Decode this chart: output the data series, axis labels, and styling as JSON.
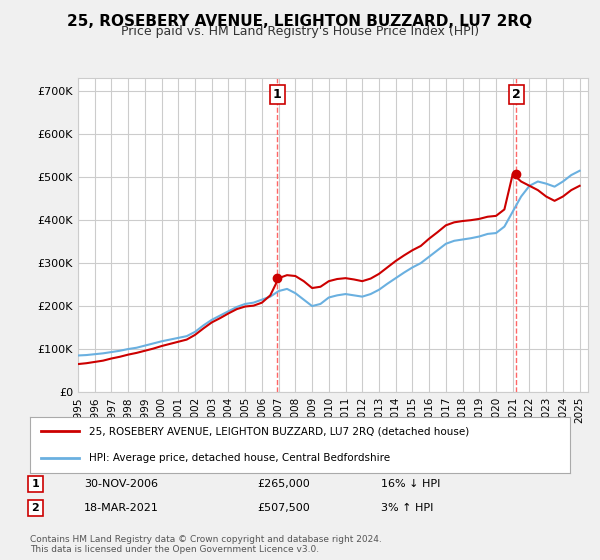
{
  "title": "25, ROSEBERY AVENUE, LEIGHTON BUZZARD, LU7 2RQ",
  "subtitle": "Price paid vs. HM Land Registry's House Price Index (HPI)",
  "ylabel_ticks": [
    "£0",
    "£100K",
    "£200K",
    "£300K",
    "£400K",
    "£500K",
    "£600K",
    "£700K"
  ],
  "ytick_vals": [
    0,
    100000,
    200000,
    300000,
    400000,
    500000,
    600000,
    700000
  ],
  "ylim": [
    0,
    730000
  ],
  "xlim_start": 1995.0,
  "xlim_end": 2025.5,
  "hpi_years": [
    1995,
    1995.5,
    1996,
    1996.5,
    1997,
    1997.5,
    1998,
    1998.5,
    1999,
    1999.5,
    2000,
    2000.5,
    2001,
    2001.5,
    2002,
    2002.5,
    2003,
    2003.5,
    2004,
    2004.5,
    2005,
    2005.5,
    2006,
    2006.5,
    2007,
    2007.5,
    2008,
    2008.5,
    2009,
    2009.5,
    2010,
    2010.5,
    2011,
    2011.5,
    2012,
    2012.5,
    2013,
    2013.5,
    2014,
    2014.5,
    2015,
    2015.5,
    2016,
    2016.5,
    2017,
    2017.5,
    2018,
    2018.5,
    2019,
    2019.5,
    2020,
    2020.5,
    2021,
    2021.5,
    2022,
    2022.5,
    2023,
    2023.5,
    2024,
    2024.5,
    2025
  ],
  "hpi_values": [
    85000,
    86000,
    88000,
    90000,
    93000,
    96000,
    100000,
    103000,
    108000,
    113000,
    118000,
    122000,
    126000,
    130000,
    140000,
    155000,
    168000,
    178000,
    188000,
    198000,
    205000,
    208000,
    215000,
    222000,
    235000,
    240000,
    230000,
    215000,
    200000,
    205000,
    220000,
    225000,
    228000,
    225000,
    222000,
    228000,
    238000,
    252000,
    265000,
    278000,
    290000,
    300000,
    315000,
    330000,
    345000,
    352000,
    355000,
    358000,
    362000,
    368000,
    370000,
    385000,
    420000,
    455000,
    480000,
    490000,
    485000,
    478000,
    490000,
    505000,
    515000
  ],
  "price_years": [
    1995,
    1995.5,
    1996,
    1996.5,
    1997,
    1997.5,
    1998,
    1998.5,
    1999,
    1999.5,
    2000,
    2000.5,
    2001,
    2001.5,
    2002,
    2002.5,
    2003,
    2003.5,
    2004,
    2004.5,
    2005,
    2005.5,
    2006,
    2006.5,
    2007,
    2007.5,
    2008,
    2008.5,
    2009,
    2009.5,
    2010,
    2010.5,
    2011,
    2011.5,
    2012,
    2012.5,
    2013,
    2013.5,
    2014,
    2014.5,
    2015,
    2015.5,
    2016,
    2016.5,
    2017,
    2017.5,
    2018,
    2018.5,
    2019,
    2019.5,
    2020,
    2020.5,
    2021,
    2021.5,
    2022,
    2022.5,
    2023,
    2023.5,
    2024,
    2024.5,
    2025
  ],
  "price_values": [
    65000,
    67000,
    70000,
    73000,
    78000,
    82000,
    87000,
    91000,
    96000,
    101000,
    107000,
    112000,
    117000,
    122000,
    133000,
    148000,
    162000,
    172000,
    183000,
    193000,
    199000,
    201000,
    208000,
    225000,
    265000,
    272000,
    270000,
    258000,
    242000,
    245000,
    258000,
    263000,
    265000,
    262000,
    258000,
    264000,
    275000,
    290000,
    305000,
    318000,
    330000,
    340000,
    357000,
    372000,
    388000,
    395000,
    398000,
    400000,
    403000,
    408000,
    410000,
    425000,
    507500,
    490000,
    480000,
    470000,
    455000,
    445000,
    455000,
    470000,
    480000
  ],
  "sale1_year": 2006.917,
  "sale1_price": 265000,
  "sale2_year": 2021.208,
  "sale2_price": 507500,
  "sale1_label": "1",
  "sale2_label": "2",
  "xtick_years": [
    1995,
    1996,
    1997,
    1998,
    1999,
    2000,
    2001,
    2002,
    2003,
    2004,
    2005,
    2006,
    2007,
    2008,
    2009,
    2010,
    2011,
    2012,
    2013,
    2014,
    2015,
    2016,
    2017,
    2018,
    2019,
    2020,
    2021,
    2022,
    2023,
    2024,
    2025
  ],
  "hpi_color": "#6ab0e0",
  "price_color": "#cc0000",
  "vline_color": "#ff6666",
  "grid_color": "#cccccc",
  "bg_color": "#f0f0f0",
  "plot_bg_color": "#ffffff",
  "legend_label1": "25, ROSEBERY AVENUE, LEIGHTON BUZZARD, LU7 2RQ (detached house)",
  "legend_label2": "HPI: Average price, detached house, Central Bedfordshire",
  "annotation1_date": "30-NOV-2006",
  "annotation1_price": "£265,000",
  "annotation1_hpi": "16% ↓ HPI",
  "annotation2_date": "18-MAR-2021",
  "annotation2_price": "£507,500",
  "annotation2_hpi": "3% ↑ HPI",
  "footer": "Contains HM Land Registry data © Crown copyright and database right 2024.\nThis data is licensed under the Open Government Licence v3.0."
}
